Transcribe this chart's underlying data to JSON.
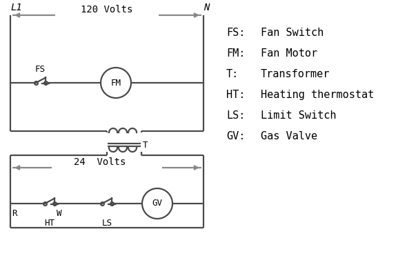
{
  "background_color": "#ffffff",
  "line_color": "#4a4a4a",
  "arrow_color": "#888888",
  "text_color": "#000000",
  "legend_items": [
    [
      "FS:",
      "Fan Switch"
    ],
    [
      "FM:",
      "Fan Motor"
    ],
    [
      "T:",
      "Transformer"
    ],
    [
      "HT:",
      "Heating thermostat"
    ],
    [
      "LS:",
      "Limit Switch"
    ],
    [
      "GV:",
      "Gas Valve"
    ]
  ],
  "L1_label": "L1",
  "N_label": "N",
  "volts120": "120 Volts",
  "volts24": "24  Volts",
  "T_label": "T",
  "R_label": "R",
  "W_label": "W",
  "HT_label": "HT",
  "LS_label": "LS"
}
